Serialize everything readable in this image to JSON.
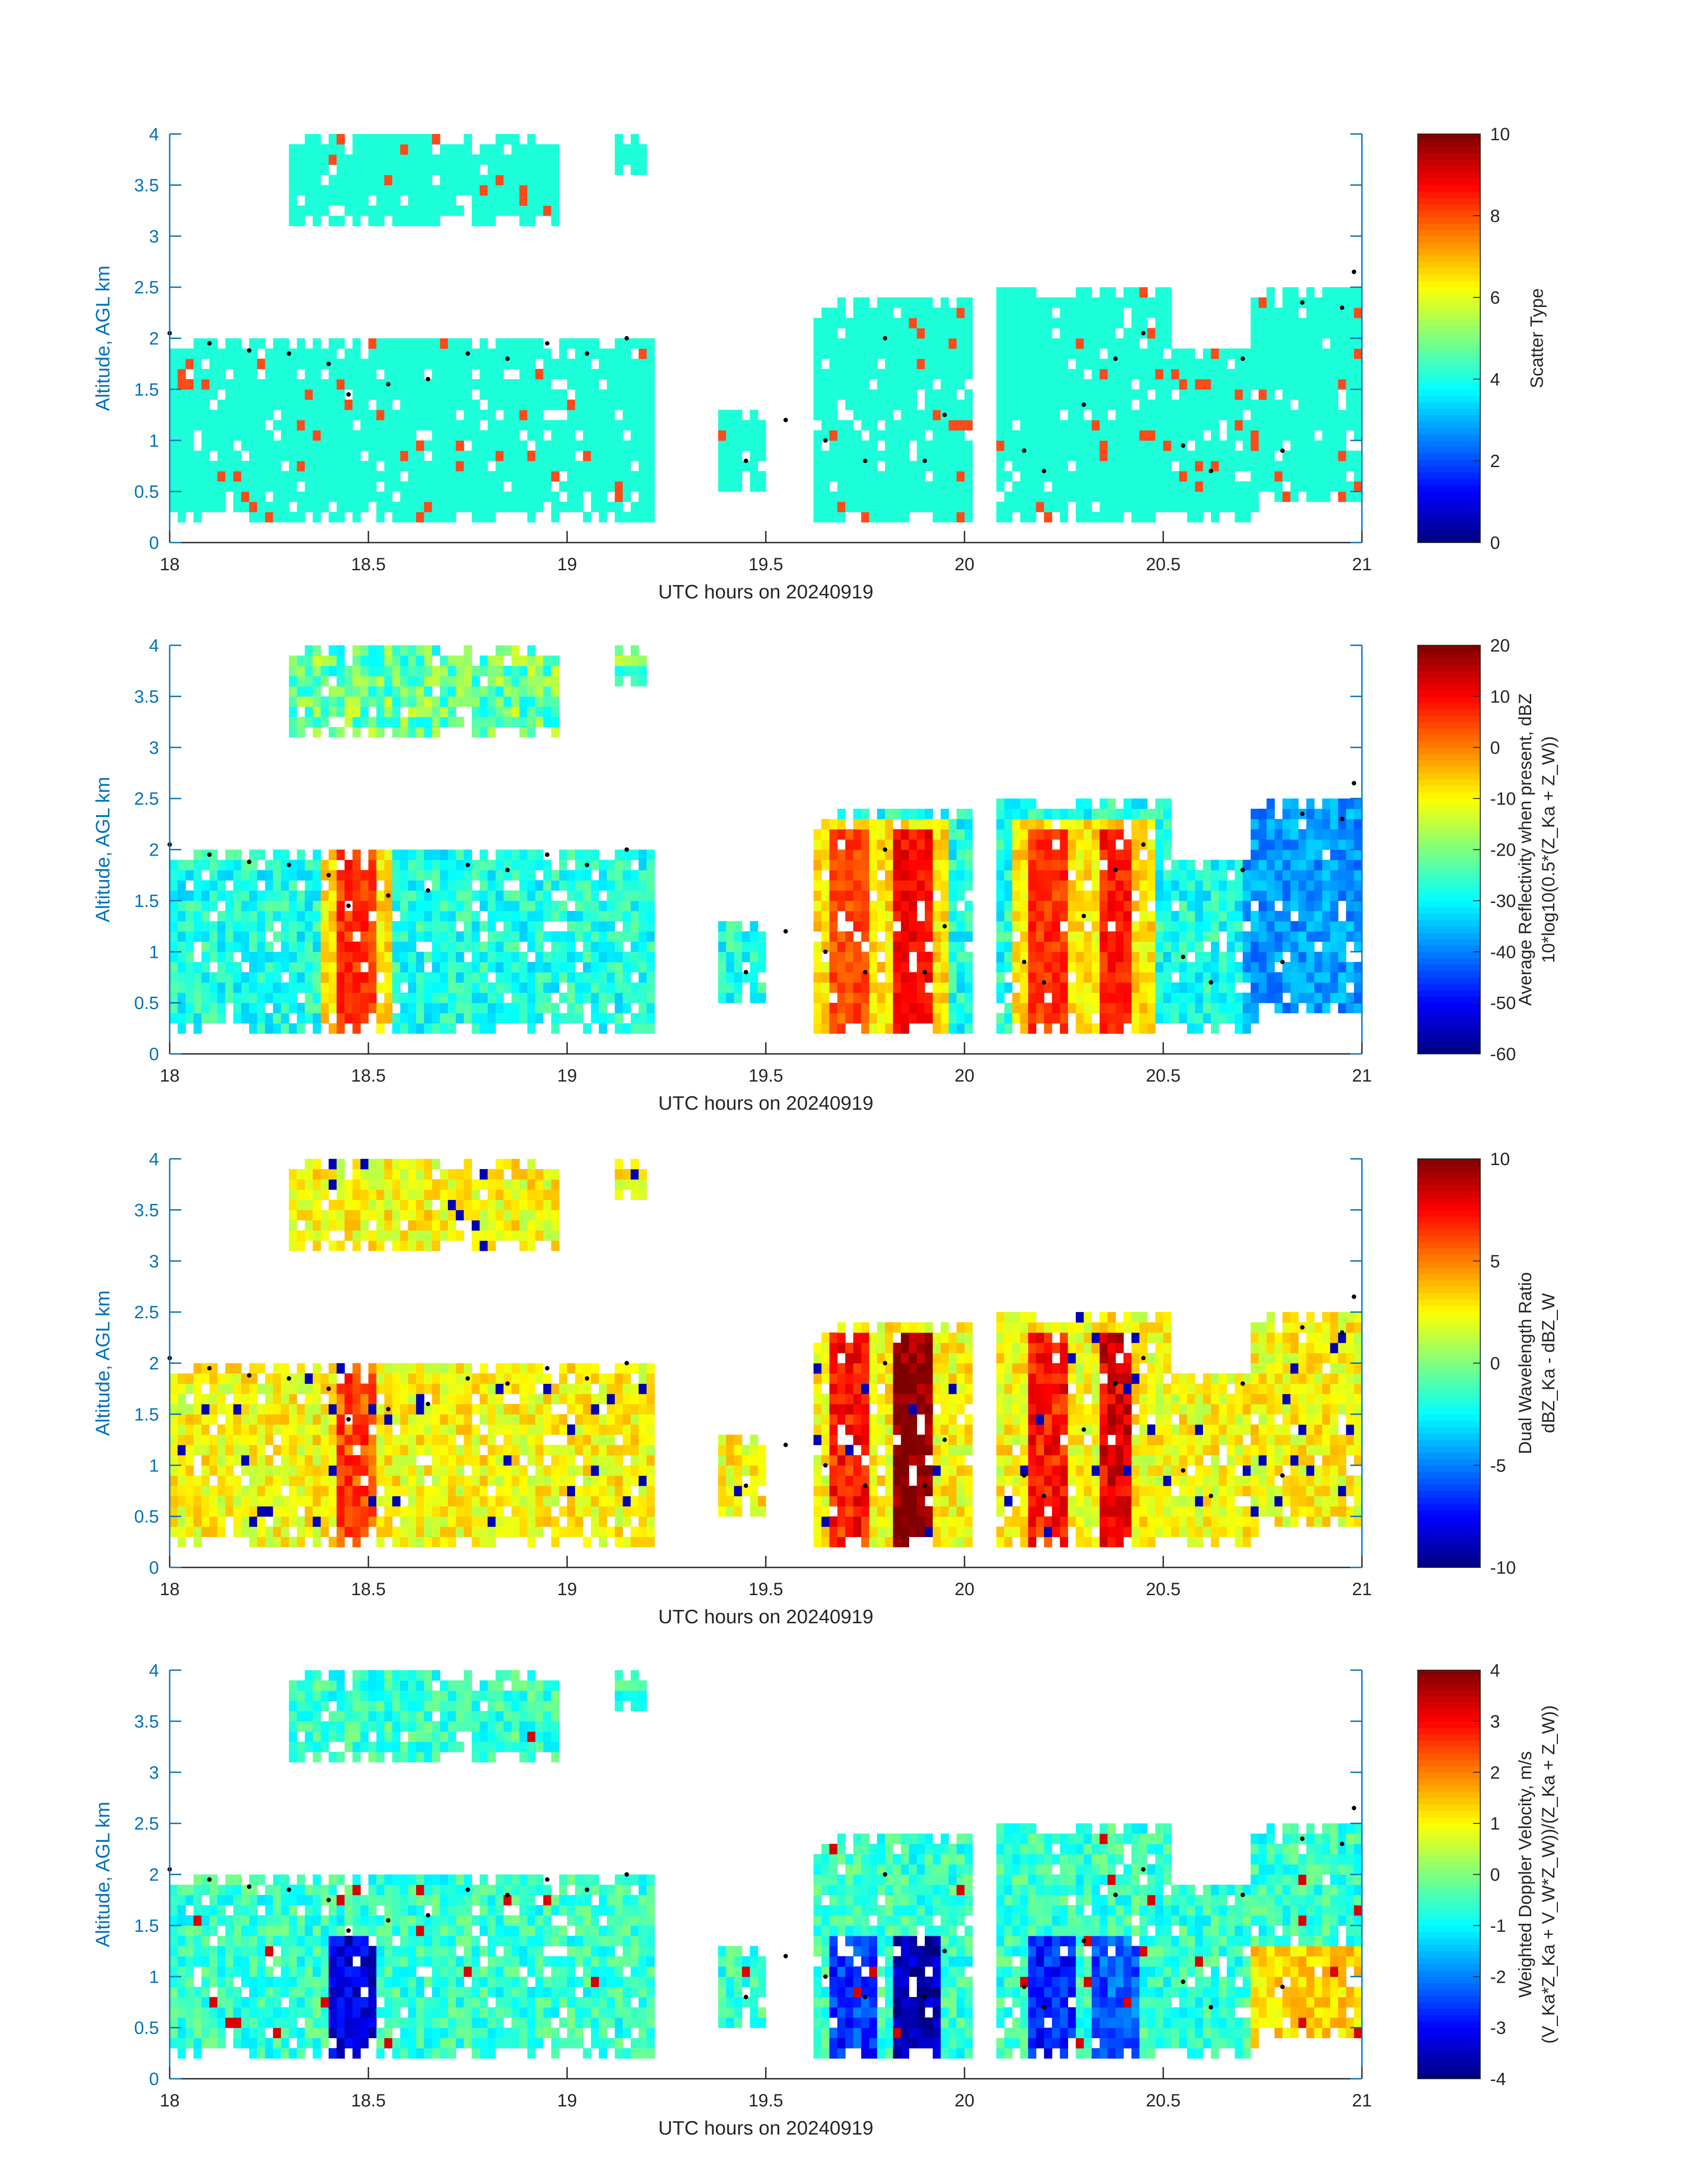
{
  "colors": {
    "axis_blue": "#0072bd",
    "text": "#262626",
    "scatter_main": "#1dffd8",
    "scatter_secondary": "#ff4a1a",
    "dots": "#000000"
  },
  "chart_data": [
    {
      "type": "heatmap",
      "xlabel": "UTC hours on 20240919",
      "ylabel": "Altitude, AGL km",
      "xlim": [
        18,
        21
      ],
      "ylim": [
        0,
        4
      ],
      "xticks": [
        "18",
        "18.5",
        "19",
        "19.5",
        "20",
        "20.5",
        "21"
      ],
      "yticks": [
        "0",
        "0.5",
        "1",
        "1.5",
        "2",
        "2.5",
        "3",
        "3.5",
        "4"
      ],
      "colorbar": {
        "label_lines": [
          "Scatter Type"
        ],
        "range": [
          0,
          10
        ],
        "ticks": [
          "0",
          "2",
          "4",
          "6",
          "8",
          "10"
        ]
      },
      "field": "scatter",
      "grid": false
    },
    {
      "type": "heatmap",
      "xlabel": "UTC hours on 20240919",
      "ylabel": "Altitude, AGL km",
      "xlim": [
        18,
        21
      ],
      "ylim": [
        0,
        4
      ],
      "xticks": [
        "18",
        "18.5",
        "19",
        "19.5",
        "20",
        "20.5",
        "21"
      ],
      "yticks": [
        "0",
        "0.5",
        "1",
        "1.5",
        "2",
        "2.5",
        "3",
        "3.5",
        "4"
      ],
      "colorbar": {
        "label_lines": [
          "Average Reflectivity when present, dBZ",
          "10*log10(0.5*(Z_Ka + Z_W))"
        ],
        "range": [
          -60,
          20
        ],
        "ticks": [
          "-60",
          "-50",
          "-40",
          "-30",
          "-20",
          "-10",
          "0",
          "10",
          "20"
        ]
      },
      "field": "reflectivity",
      "grid": false
    },
    {
      "type": "heatmap",
      "xlabel": "UTC hours on 20240919",
      "ylabel": "Altitude, AGL km",
      "xlim": [
        18,
        21
      ],
      "ylim": [
        0,
        4
      ],
      "xticks": [
        "18",
        "18.5",
        "19",
        "19.5",
        "20",
        "20.5",
        "21"
      ],
      "yticks": [
        "0",
        "0.5",
        "1",
        "1.5",
        "2",
        "2.5",
        "3",
        "3.5",
        "4"
      ],
      "colorbar": {
        "label_lines": [
          "Dual Wavelength Ratio",
          "dBZ_Ka - dBZ_W"
        ],
        "range": [
          -10,
          10
        ],
        "ticks": [
          "-10",
          "-5",
          "0",
          "5",
          "10"
        ]
      },
      "field": "dwr",
      "grid": false
    },
    {
      "type": "heatmap",
      "xlabel": "UTC hours on 20240919",
      "ylabel": "Altitude, AGL km",
      "xlim": [
        18,
        21
      ],
      "ylim": [
        0,
        4
      ],
      "xticks": [
        "18",
        "18.5",
        "19",
        "19.5",
        "20",
        "20.5",
        "21"
      ],
      "yticks": [
        "0",
        "0.5",
        "1",
        "1.5",
        "2",
        "2.5",
        "3",
        "3.5",
        "4"
      ],
      "colorbar": {
        "label_lines": [
          "Weighted Doppler Velocity, m/s",
          "(V_Ka*Z_Ka + V_W*Z_W))/(Z_Ka + Z_W))"
        ],
        "range": [
          -4,
          4
        ],
        "ticks": [
          "-4",
          "-3",
          "-2",
          "-1",
          "0",
          "1",
          "2",
          "3",
          "4"
        ]
      },
      "field": "velocity",
      "grid": false
    }
  ],
  "echo_regions": [
    {
      "t0": 18.3,
      "t1": 18.98,
      "base_km": 3.1,
      "top_km": 4.0
    },
    {
      "t0": 19.13,
      "t1": 19.2,
      "base_km": 3.65,
      "top_km": 4.0
    },
    {
      "t0": 18.0,
      "t1": 19.23,
      "base_km": 0.2,
      "top_km": 2.05
    },
    {
      "t0": 19.38,
      "t1": 19.5,
      "base_km": 0.55,
      "top_km": 1.3
    },
    {
      "t0": 19.62,
      "t1": 20.02,
      "base_km": 0.2,
      "top_km": 2.4
    },
    {
      "t0": 20.08,
      "t1": 20.52,
      "base_km": 0.2,
      "top_km": 2.55
    },
    {
      "t0": 20.52,
      "t1": 20.75,
      "base_km": 0.2,
      "top_km": 1.95
    },
    {
      "t0": 20.72,
      "t1": 21.0,
      "base_km": 0.4,
      "top_km": 2.5
    }
  ],
  "cloud_base_dots": [
    {
      "t": 18.0,
      "km": 2.05
    },
    {
      "t": 18.1,
      "km": 1.95
    },
    {
      "t": 18.2,
      "km": 1.88
    },
    {
      "t": 18.3,
      "km": 1.85
    },
    {
      "t": 18.4,
      "km": 1.75
    },
    {
      "t": 18.45,
      "km": 1.45
    },
    {
      "t": 18.55,
      "km": 1.55
    },
    {
      "t": 18.65,
      "km": 1.6
    },
    {
      "t": 18.75,
      "km": 1.85
    },
    {
      "t": 18.85,
      "km": 1.8
    },
    {
      "t": 18.95,
      "km": 1.95
    },
    {
      "t": 19.05,
      "km": 1.85
    },
    {
      "t": 19.15,
      "km": 2.0
    },
    {
      "t": 19.45,
      "km": 0.8
    },
    {
      "t": 19.55,
      "km": 1.2
    },
    {
      "t": 19.65,
      "km": 1.0
    },
    {
      "t": 19.75,
      "km": 0.8
    },
    {
      "t": 19.8,
      "km": 2.0
    },
    {
      "t": 19.9,
      "km": 0.8
    },
    {
      "t": 19.95,
      "km": 1.25
    },
    {
      "t": 20.15,
      "km": 0.9
    },
    {
      "t": 20.2,
      "km": 0.7
    },
    {
      "t": 20.3,
      "km": 1.35
    },
    {
      "t": 20.38,
      "km": 1.8
    },
    {
      "t": 20.45,
      "km": 2.05
    },
    {
      "t": 20.55,
      "km": 0.95
    },
    {
      "t": 20.62,
      "km": 0.7
    },
    {
      "t": 20.7,
      "km": 1.8
    },
    {
      "t": 20.8,
      "km": 0.9
    },
    {
      "t": 20.85,
      "km": 2.35
    },
    {
      "t": 20.95,
      "km": 2.3
    },
    {
      "t": 20.98,
      "km": 2.65
    }
  ]
}
